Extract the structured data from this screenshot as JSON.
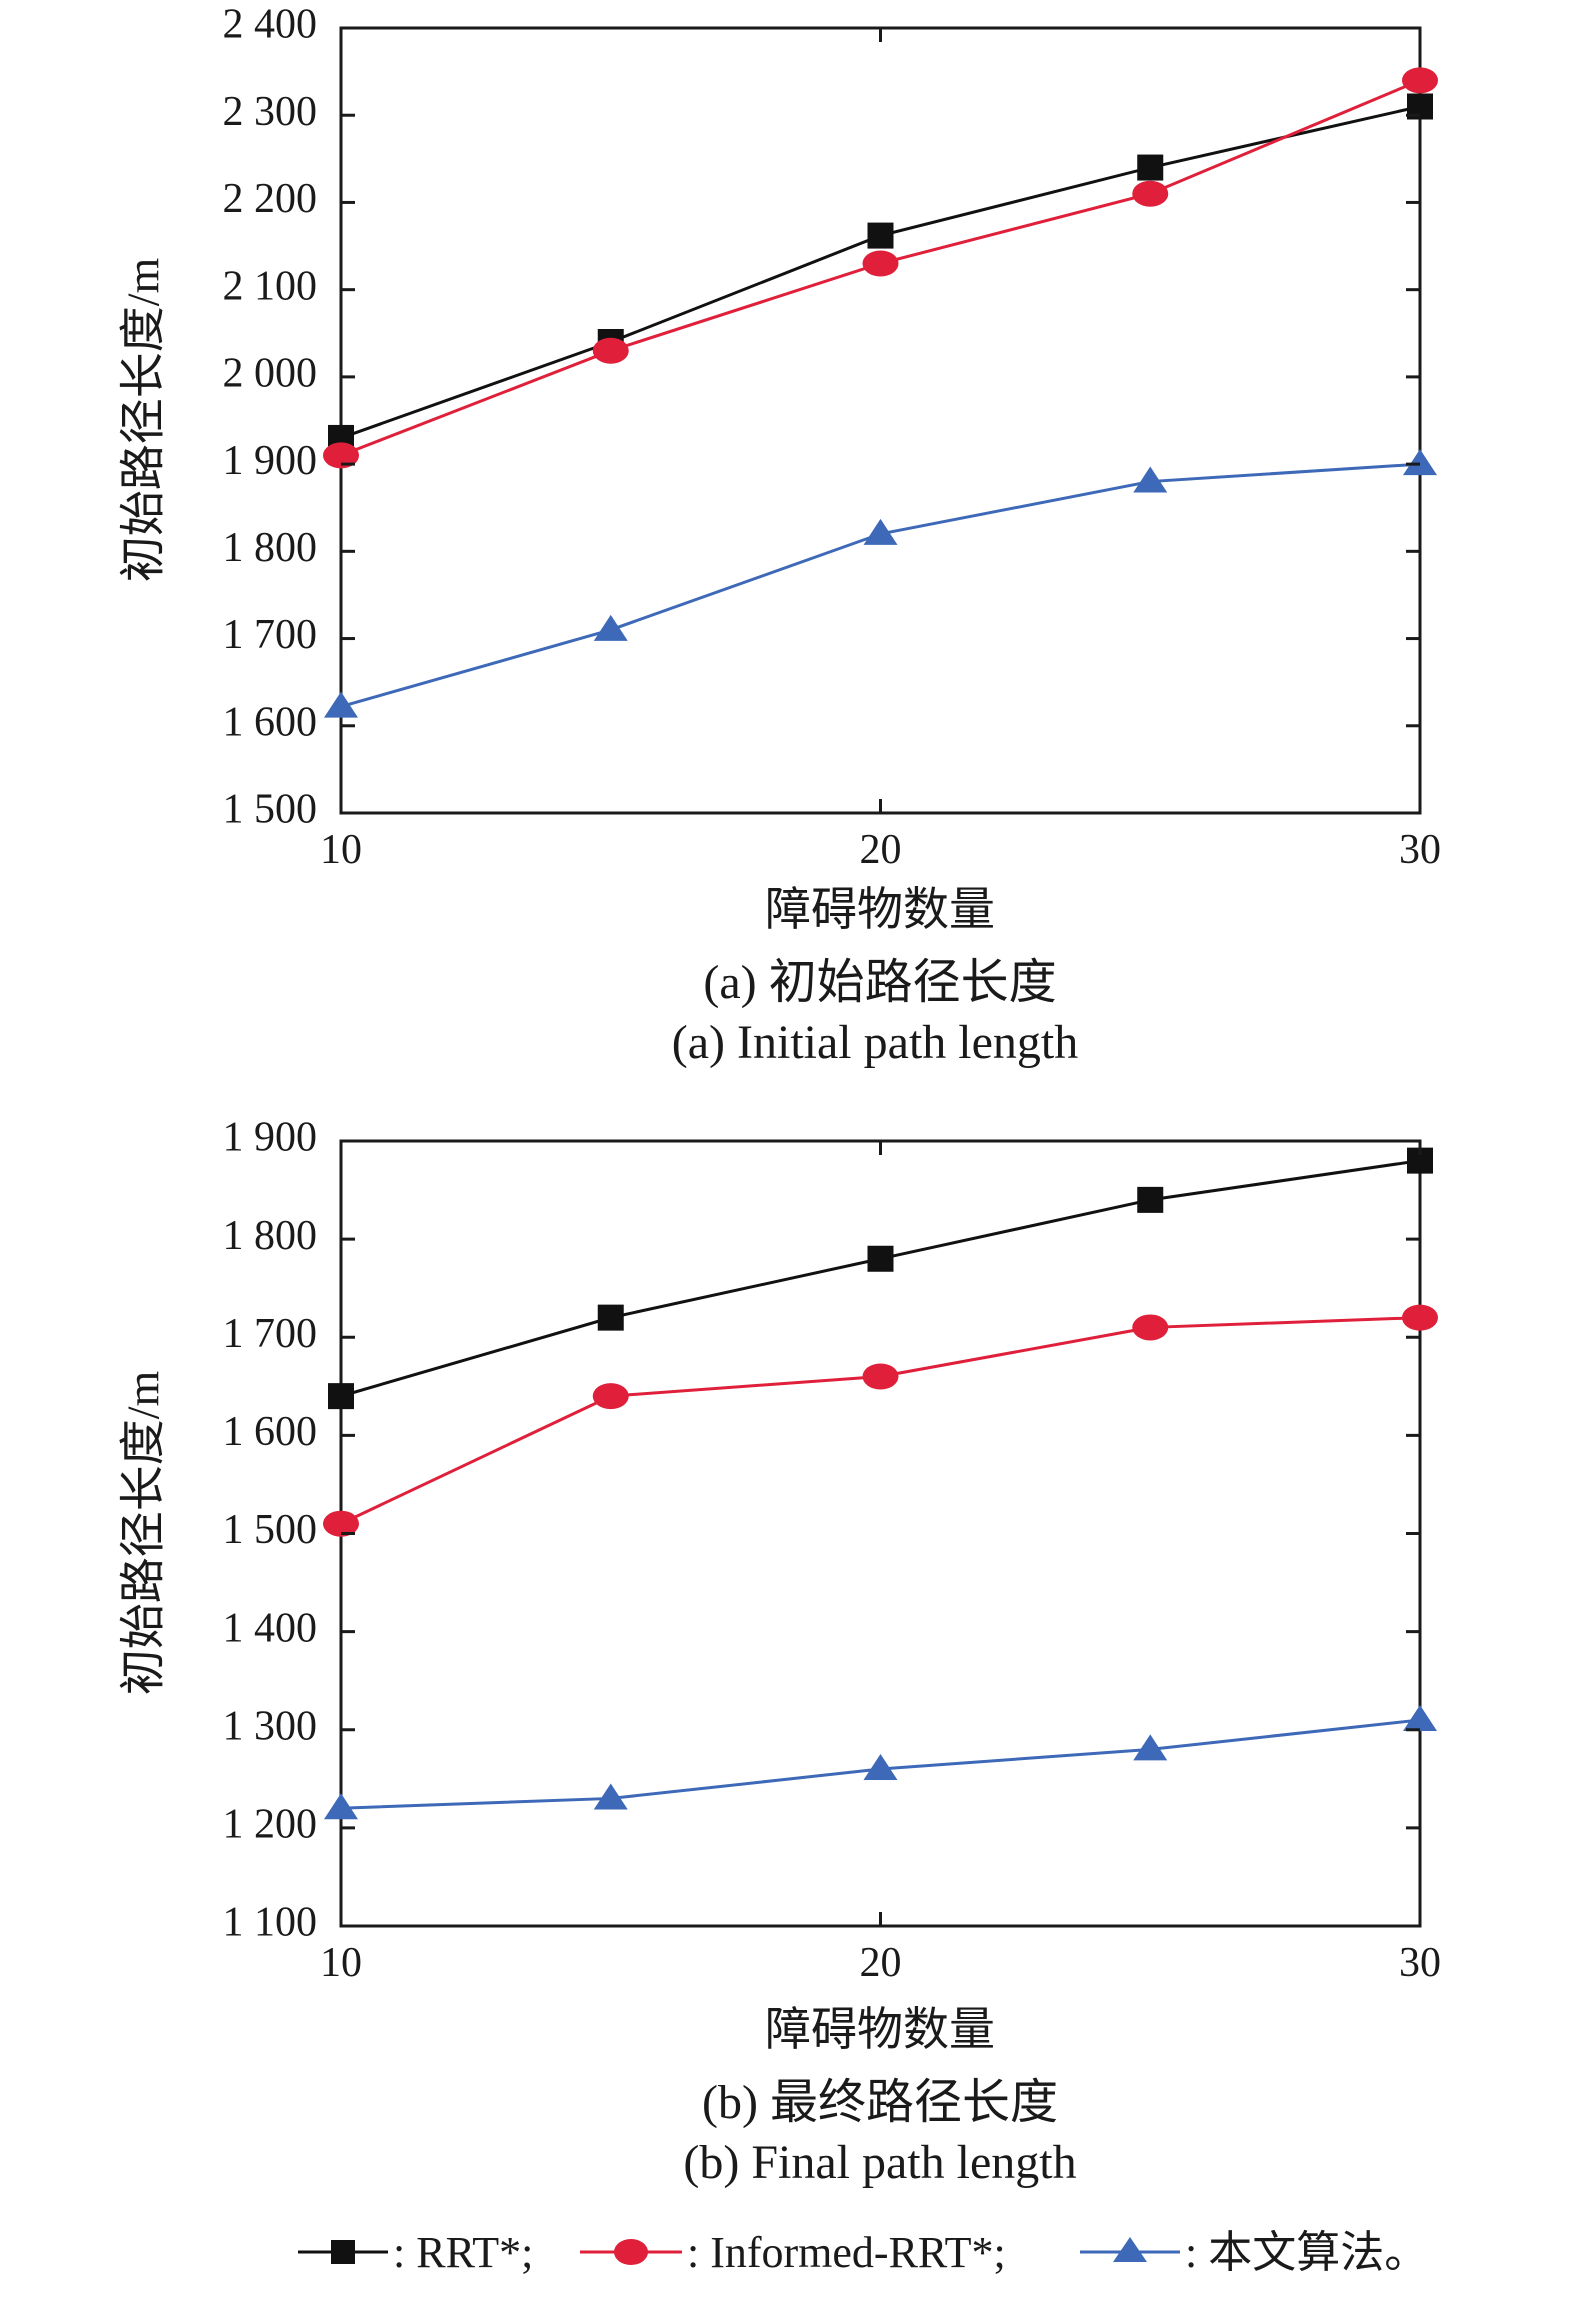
{
  "chart_data": [
    {
      "type": "line",
      "title": "",
      "caption_zh": "(a) 初始路径长度",
      "caption_en": "(a) Initial path length",
      "xlabel": "障碍物数量",
      "ylabel": "初始路径长度/m",
      "x": [
        10,
        15,
        20,
        25,
        30
      ],
      "xlim": [
        10,
        30
      ],
      "ylim": [
        1500,
        2400
      ],
      "xticks": [
        10,
        20,
        30
      ],
      "xtick_labels": [
        "10",
        "20",
        "30"
      ],
      "yticks": [
        1500,
        1600,
        1700,
        1800,
        1900,
        2000,
        2100,
        2200,
        2300,
        2400
      ],
      "ytick_labels": [
        "1 500",
        "1 600",
        "1 700",
        "1 800",
        "1 900",
        "2 000",
        "2 100",
        "2 200",
        "2 300",
        "2 400"
      ],
      "grid": false,
      "series": [
        {
          "name": "RRT*",
          "marker": "square",
          "color": "#111111",
          "values": [
            1930,
            2040,
            2162,
            2240,
            2310
          ]
        },
        {
          "name": "Informed-RRT*",
          "marker": "circle",
          "color": "#e0203a",
          "values": [
            1910,
            2030,
            2130,
            2210,
            2340
          ]
        },
        {
          "name": "本文算法",
          "marker": "triangle",
          "color": "#3d69b8",
          "values": [
            1622,
            1710,
            1820,
            1880,
            1900
          ]
        }
      ]
    },
    {
      "type": "line",
      "title": "",
      "caption_zh": "(b) 最终路径长度",
      "caption_en": "(b) Final path length",
      "xlabel": "障碍物数量",
      "ylabel": "初始路径长度/m",
      "x": [
        10,
        15,
        20,
        25,
        30
      ],
      "xlim": [
        10,
        30
      ],
      "ylim": [
        1100,
        1900
      ],
      "xticks": [
        10,
        20,
        30
      ],
      "xtick_labels": [
        "10",
        "20",
        "30"
      ],
      "yticks": [
        1100,
        1200,
        1300,
        1400,
        1500,
        1600,
        1700,
        1800,
        1900
      ],
      "ytick_labels": [
        "1 100",
        "1 200",
        "1 300",
        "1 400",
        "1 500",
        "1 600",
        "1 700",
        "1 800",
        "1 900"
      ],
      "grid": false,
      "series": [
        {
          "name": "RRT*",
          "marker": "square",
          "color": "#111111",
          "values": [
            1640,
            1720,
            1780,
            1840,
            1880
          ]
        },
        {
          "name": "Informed-RRT*",
          "marker": "circle",
          "color": "#e0203a",
          "values": [
            1510,
            1640,
            1660,
            1710,
            1720
          ]
        },
        {
          "name": "本文算法",
          "marker": "triangle",
          "color": "#3d69b8",
          "values": [
            1220,
            1230,
            1260,
            1280,
            1310
          ]
        }
      ]
    }
  ],
  "legend": {
    "placement": "bottom",
    "items": [
      {
        "label": ": RRT*;",
        "marker": "square",
        "color": "#111111"
      },
      {
        "label": ": Informed-RRT*;",
        "marker": "circle",
        "color": "#e0203a"
      },
      {
        "label": ": 本文算法。",
        "marker": "triangle",
        "color": "#3d69b8"
      }
    ]
  }
}
